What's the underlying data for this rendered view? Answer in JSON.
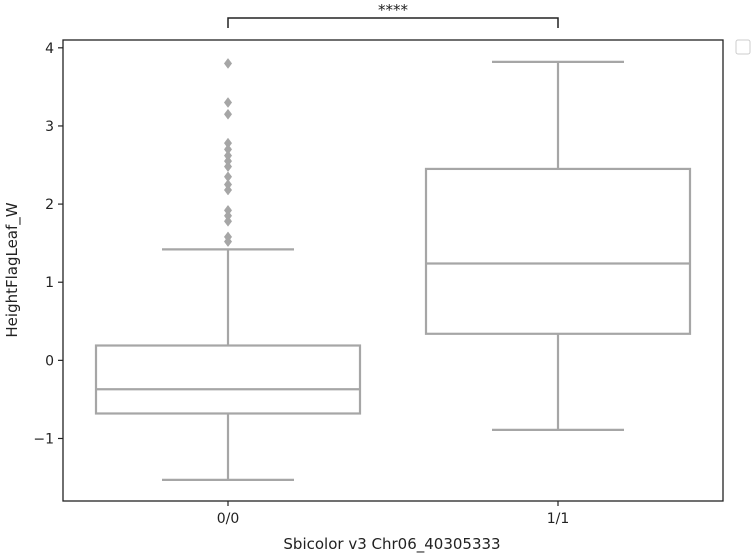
{
  "chart_data": {
    "type": "box",
    "xlabel": "Sbicolor v3 Chr06_40305333",
    "ylabel": "HeightFlagLeaf_W",
    "ylim": [
      -1.8,
      4.1
    ],
    "yticks": [
      -1,
      0,
      1,
      2,
      3,
      4
    ],
    "ytick_labels": [
      "−1",
      "0",
      "1",
      "2",
      "3",
      "4"
    ],
    "categories": [
      "0/0",
      "1/1"
    ],
    "boxes": [
      {
        "category": "0/0",
        "whisker_low": -1.53,
        "q1": -0.68,
        "median": -0.37,
        "q3": 0.19,
        "whisker_high": 1.42,
        "outliers": [
          1.52,
          1.58,
          1.78,
          1.85,
          1.92,
          2.18,
          2.25,
          2.35,
          2.48,
          2.55,
          2.62,
          2.7,
          2.78,
          3.15,
          3.3,
          3.8
        ]
      },
      {
        "category": "1/1",
        "whisker_low": -0.89,
        "q1": 0.34,
        "median": 1.24,
        "q3": 2.45,
        "whisker_high": 3.82,
        "outliers": []
      }
    ],
    "significance": {
      "between": [
        "0/0",
        "1/1"
      ],
      "label": "****"
    },
    "box_color": "#a6a6a6",
    "legend": "top-right (empty)"
  }
}
